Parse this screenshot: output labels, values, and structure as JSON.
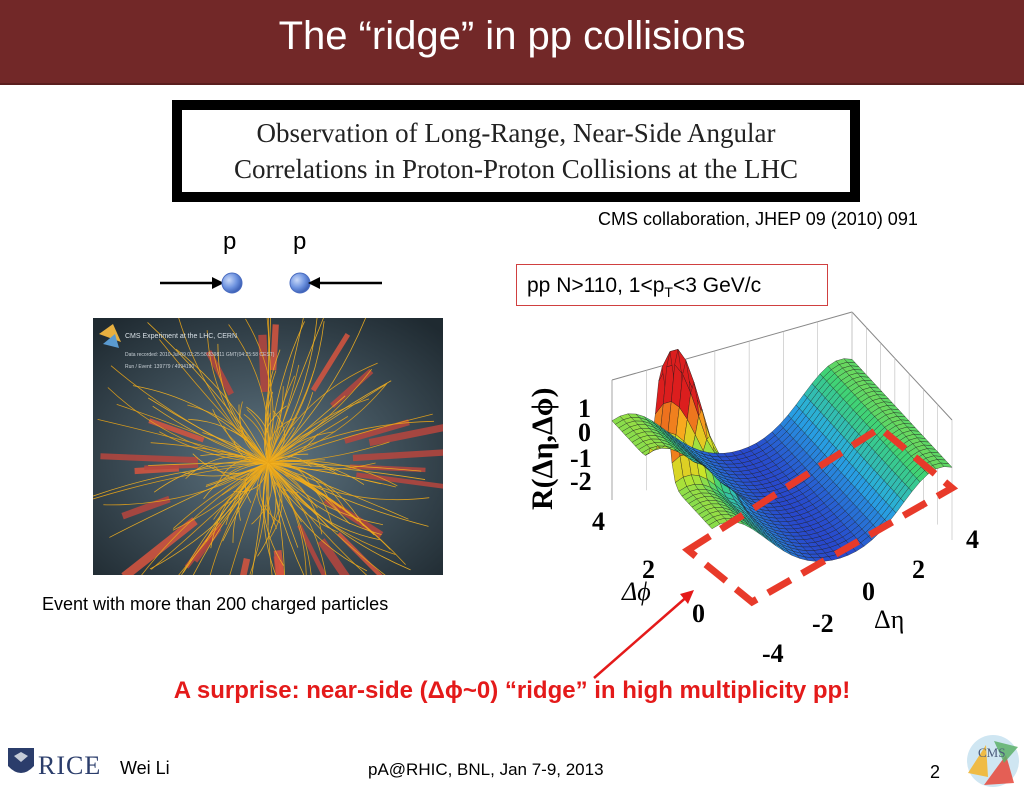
{
  "slide": {
    "title": "The “ridge” in pp collisions",
    "paper_title_line1": "Observation of Long-Range, Near-Side Angular",
    "paper_title_line2": "Correlations in Proton-Proton Collisions at the LHC",
    "citation": "CMS collaboration, JHEP 09 (2010) 091",
    "proton_left": "p",
    "proton_right": "p",
    "cuts": {
      "prefix": "pp N>110, 1<p",
      "sub": "T",
      "suffix": "<3 GeV/c"
    },
    "event_display": {
      "header": "CMS Experiment at the LHC, CERN",
      "data_line": "Data recorded: 2010-Jul-09 02:25:58.839811 GMT(04:25:58 CEST)",
      "run_line": "Run / Event: 139779 / 4994190"
    },
    "event_caption": "Event with more than 200 charged particles",
    "surprise": "A surprise: near-side (Δϕ~0) “ridge” in high multiplicity pp!",
    "colors": {
      "title_bar": "#722828",
      "accent_red": "#e41a1a"
    }
  },
  "plot": {
    "zlabel": "R(Δη,Δϕ)",
    "zticks": [
      "1",
      "0",
      "-1",
      "-2"
    ],
    "phi_ticks": [
      "4",
      "2",
      "0"
    ],
    "phi_label": "Δϕ",
    "eta_ticks": [
      "4",
      "2",
      "0",
      "-2",
      "-4"
    ],
    "eta_label": "Δη"
  },
  "footer": {
    "institution": "RICE",
    "author": "Wei Li",
    "conference": "pA@RHIC, BNL, Jan 7-9, 2013",
    "page": "2",
    "cms_logo_text": "CMS"
  }
}
